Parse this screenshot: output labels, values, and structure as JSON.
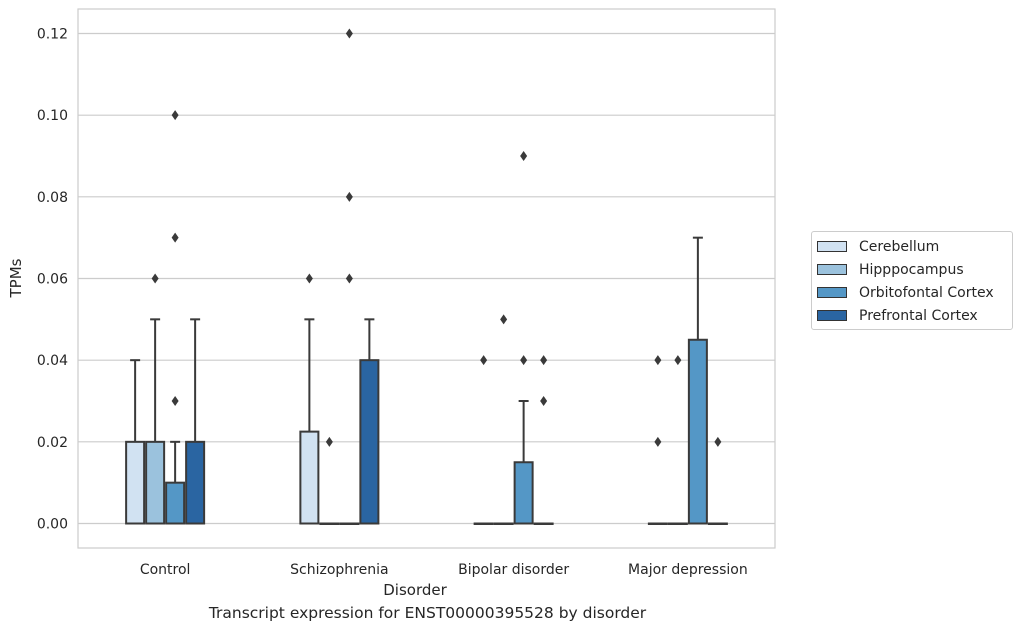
{
  "chart_data": {
    "type": "box",
    "title": "Transcript expression for ENST00000395528 by disorder",
    "xlabel": "Disorder",
    "ylabel": "TPMs",
    "ylim": [
      -0.006,
      0.126
    ],
    "yticks": [
      "0.00",
      "0.02",
      "0.04",
      "0.06",
      "0.08",
      "0.10",
      "0.12"
    ],
    "categories": [
      "Control",
      "Schizophrenia",
      "Bipolar disorder",
      "Major depression"
    ],
    "grid": "horizontal",
    "legend_position": "right",
    "series": [
      {
        "name": "Cerebellum",
        "color": "#d1e2f2",
        "boxes": [
          {
            "min": 0,
            "q1": 0,
            "median": 0,
            "q3": 0.02,
            "max": 0.04,
            "outliers": []
          },
          {
            "min": 0,
            "q1": 0,
            "median": 0,
            "q3": 0.0225,
            "max": 0.05,
            "outliers": [
              0.06
            ]
          },
          {
            "min": 0,
            "q1": 0,
            "median": 0,
            "q3": 0,
            "max": 0,
            "outliers": [
              0.04
            ]
          },
          {
            "min": 0,
            "q1": 0,
            "median": 0,
            "q3": 0,
            "max": 0,
            "outliers": [
              0.02,
              0.04
            ]
          }
        ]
      },
      {
        "name": "Hipppocampus",
        "color": "#9bc2dd",
        "boxes": [
          {
            "min": 0,
            "q1": 0,
            "median": 0,
            "q3": 0.02,
            "max": 0.05,
            "outliers": [
              0.06
            ]
          },
          {
            "min": 0,
            "q1": 0,
            "median": 0,
            "q3": 0,
            "max": 0,
            "outliers": [
              0.02
            ]
          },
          {
            "min": 0,
            "q1": 0,
            "median": 0,
            "q3": 0,
            "max": 0,
            "outliers": [
              0.05
            ]
          },
          {
            "min": 0,
            "q1": 0,
            "median": 0,
            "q3": 0,
            "max": 0,
            "outliers": [
              0.04
            ]
          }
        ]
      },
      {
        "name": "Orbitofontal Cortex",
        "color": "#5497c6",
        "boxes": [
          {
            "min": 0,
            "q1": 0,
            "median": 0,
            "q3": 0.01,
            "max": 0.02,
            "outliers": [
              0.03,
              0.07,
              0.1
            ]
          },
          {
            "min": 0,
            "q1": 0,
            "median": 0,
            "q3": 0,
            "max": 0,
            "outliers": [
              0.06,
              0.08,
              0.12
            ]
          },
          {
            "min": 0,
            "q1": 0,
            "median": 0,
            "q3": 0.015,
            "max": 0.03,
            "outliers": [
              0.04,
              0.09
            ]
          },
          {
            "min": 0,
            "q1": 0,
            "median": 0,
            "q3": 0.045,
            "max": 0.07,
            "outliers": []
          }
        ]
      },
      {
        "name": "Prefrontal Cortex",
        "color": "#2a65a2",
        "boxes": [
          {
            "min": 0,
            "q1": 0,
            "median": 0,
            "q3": 0.02,
            "max": 0.05,
            "outliers": []
          },
          {
            "min": 0,
            "q1": 0,
            "median": 0,
            "q3": 0.04,
            "max": 0.05,
            "outliers": []
          },
          {
            "min": 0,
            "q1": 0,
            "median": 0,
            "q3": 0,
            "max": 0,
            "outliers": [
              0.03,
              0.04
            ]
          },
          {
            "min": 0,
            "q1": 0,
            "median": 0,
            "q3": 0,
            "max": 0,
            "outliers": [
              0.02
            ]
          }
        ]
      }
    ]
  }
}
